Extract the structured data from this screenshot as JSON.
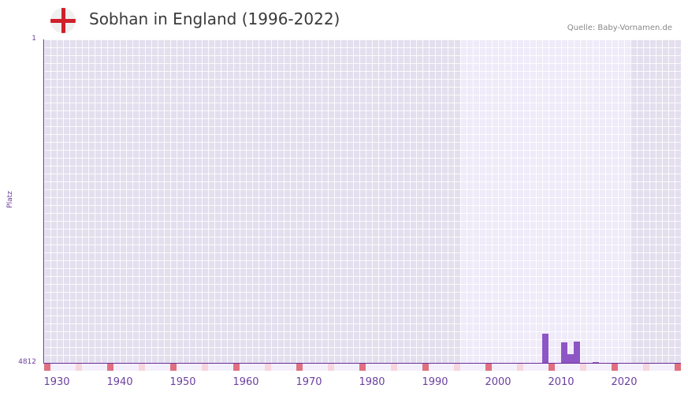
{
  "header": {
    "title": "Sobhan in England (1996-2022)",
    "source": "Quelle: Baby-Vornamen.de",
    "flag_icon": "england-flag-icon"
  },
  "colors": {
    "bar": "#8e55c4",
    "axis": "#6b2f9a",
    "decade_marker": "#e07080",
    "half_decade_marker": "#f7d5dd",
    "bg_outside": "#e3dfee",
    "bg_inside": "#efebf9"
  },
  "chart_data": {
    "type": "bar",
    "title": "Sobhan in England (1996-2022)",
    "xlabel": "",
    "ylabel": "Platz",
    "y_inverted": true,
    "ylim": [
      4812,
      1
    ],
    "xlim": [
      1930,
      2030
    ],
    "x_ticks": [
      "1930",
      "1940",
      "1950",
      "1960",
      "1970",
      "1980",
      "1990",
      "2000",
      "2010",
      "2020"
    ],
    "y_ticks": [
      "1",
      "4812"
    ],
    "highlight_range": [
      1996,
      2022
    ],
    "grid": true,
    "categories": [
      "2009",
      "2012",
      "2013",
      "2014",
      "2017"
    ],
    "values": [
      4378,
      4506,
      4682,
      4494,
      4799
    ]
  },
  "axis": {
    "y_top": "1",
    "y_bottom": "4812",
    "y_title": "Platz",
    "x_labels": [
      "1930",
      "1940",
      "1950",
      "1960",
      "1970",
      "1980",
      "1990",
      "2000",
      "2010",
      "2020"
    ]
  }
}
